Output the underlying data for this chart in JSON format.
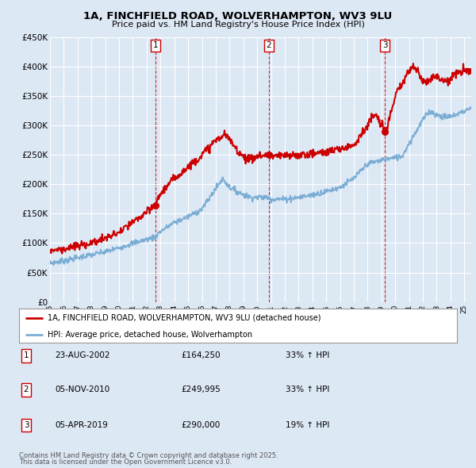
{
  "title": "1A, FINCHFIELD ROAD, WOLVERHAMPTON, WV3 9LU",
  "subtitle": "Price paid vs. HM Land Registry's House Price Index (HPI)",
  "ylim": [
    0,
    450000
  ],
  "xlim_start": 1995.0,
  "xlim_end": 2025.5,
  "bg_color": "#dde8f5",
  "grid_color": "#ffffff",
  "red_color": "#cc0000",
  "blue_color": "#7aadd4",
  "transactions": [
    {
      "label": "1",
      "date": "23-AUG-2002",
      "price": 164250,
      "year": 2002.64,
      "hpi_pct": "33% ↑ HPI"
    },
    {
      "label": "2",
      "date": "05-NOV-2010",
      "price": 249995,
      "year": 2010.84,
      "hpi_pct": "33% ↑ HPI"
    },
    {
      "label": "3",
      "date": "05-APR-2019",
      "price": 290000,
      "year": 2019.26,
      "hpi_pct": "19% ↑ HPI"
    }
  ],
  "legend_line1": "1A, FINCHFIELD ROAD, WOLVERHAMPTON, WV3 9LU (detached house)",
  "legend_line2": "HPI: Average price, detached house, Wolverhampton",
  "footer1": "Contains HM Land Registry data © Crown copyright and database right 2025.",
  "footer2": "This data is licensed under the Open Government Licence v3.0.",
  "hpi_anchors_t": [
    1995,
    1996,
    1997,
    1998,
    1999,
    2000,
    2001,
    2002.6,
    2003,
    2004,
    2005,
    2006,
    2007.5,
    2008,
    2008.8,
    2009.5,
    2010.8,
    2011,
    2012,
    2013,
    2014,
    2015,
    2016,
    2017,
    2018,
    2019.3,
    2020,
    2020.5,
    2021,
    2021.5,
    2022,
    2022.5,
    2023,
    2023.5,
    2024,
    2024.5,
    2025.5
  ],
  "hpi_anchors_v": [
    66000,
    70000,
    75000,
    80000,
    85000,
    92000,
    100000,
    110000,
    120000,
    135000,
    145000,
    158000,
    210000,
    195000,
    185000,
    178000,
    178000,
    175000,
    175000,
    178000,
    182000,
    188000,
    195000,
    210000,
    235000,
    243000,
    245000,
    248000,
    270000,
    290000,
    310000,
    325000,
    318000,
    315000,
    315000,
    320000,
    330000
  ],
  "red_anchors_t": [
    1995,
    1996,
    1997,
    1998,
    1999,
    2000,
    2001,
    2002,
    2002.64,
    2003,
    2004,
    2005,
    2006,
    2007,
    2007.7,
    2008.5,
    2009,
    2009.5,
    2010,
    2010.84,
    2011,
    2012,
    2013,
    2014,
    2015,
    2016,
    2017,
    2018,
    2018.5,
    2019.26,
    2019.8,
    2020,
    2020.5,
    2021,
    2021.3,
    2021.7,
    2022,
    2022.5,
    2023,
    2023.5,
    2024,
    2024.5,
    2025.5
  ],
  "red_anchors_v": [
    88000,
    90000,
    95000,
    100000,
    108000,
    118000,
    135000,
    152000,
    164250,
    185000,
    210000,
    230000,
    250000,
    275000,
    285000,
    260000,
    248000,
    242000,
    248000,
    249995,
    248000,
    248000,
    250000,
    252000,
    255000,
    260000,
    268000,
    300000,
    320000,
    290000,
    330000,
    350000,
    370000,
    395000,
    400000,
    390000,
    375000,
    380000,
    385000,
    375000,
    380000,
    390000,
    395000
  ]
}
